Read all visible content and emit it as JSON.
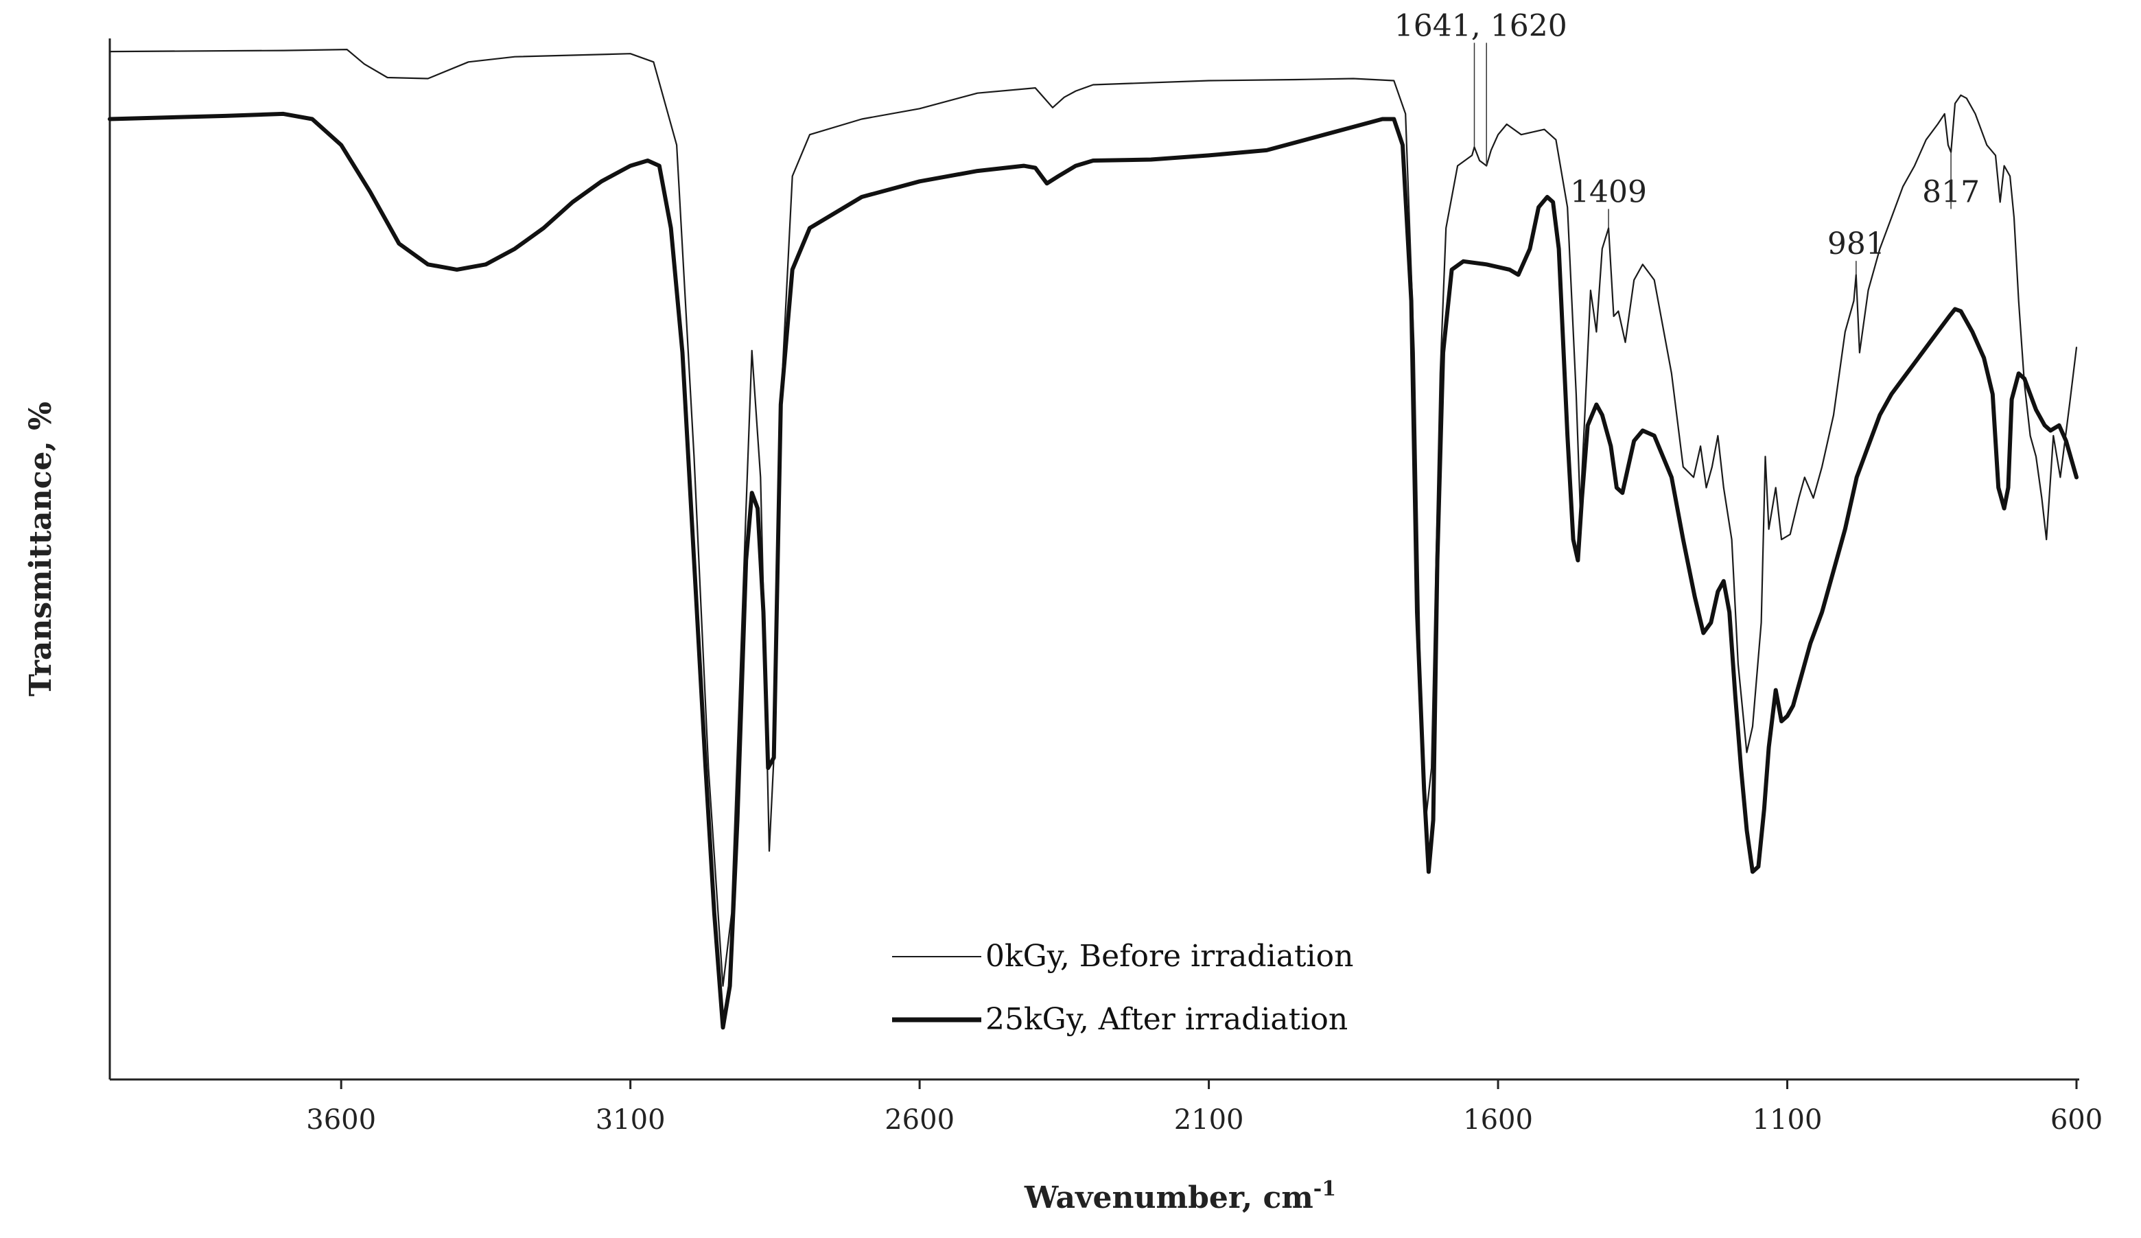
{
  "chart_data": {
    "type": "line",
    "title": "",
    "xlabel": "Wavenumber,  cm",
    "xlabel_superscript": "-1",
    "ylabel": "Transmittance,  %",
    "xlim": [
      4000,
      600
    ],
    "x_reversed": true,
    "ylim": [
      0,
      100
    ],
    "x_ticks": [
      3600,
      3100,
      2600,
      2100,
      1600,
      1100,
      600
    ],
    "y_ticks_shown": false,
    "grid": false,
    "legend_position": "bottom-center",
    "series": [
      {
        "name": "0kGy, Before irradiation",
        "style": "thin",
        "color": "#1a1a1a",
        "points": [
          [
            4000,
            99.0
          ],
          [
            3700,
            99.1
          ],
          [
            3590,
            99.2
          ],
          [
            3560,
            97.8
          ],
          [
            3520,
            96.5
          ],
          [
            3450,
            96.4
          ],
          [
            3380,
            98.0
          ],
          [
            3300,
            98.5
          ],
          [
            3100,
            98.8
          ],
          [
            3060,
            98.0
          ],
          [
            3020,
            90.0
          ],
          [
            2990,
            60.0
          ],
          [
            2965,
            30.0
          ],
          [
            2940,
            9.0
          ],
          [
            2925,
            16.0
          ],
          [
            2900,
            55.0
          ],
          [
            2890,
            70.2
          ],
          [
            2875,
            58.0
          ],
          [
            2868,
            42.0
          ],
          [
            2860,
            22.0
          ],
          [
            2852,
            31.0
          ],
          [
            2840,
            65.0
          ],
          [
            2820,
            87.0
          ],
          [
            2790,
            91.0
          ],
          [
            2700,
            92.5
          ],
          [
            2600,
            93.5
          ],
          [
            2500,
            95.0
          ],
          [
            2400,
            95.5
          ],
          [
            2370,
            93.6
          ],
          [
            2350,
            94.6
          ],
          [
            2330,
            95.2
          ],
          [
            2300,
            95.8
          ],
          [
            2100,
            96.2
          ],
          [
            1950,
            96.3
          ],
          [
            1850,
            96.4
          ],
          [
            1780,
            96.2
          ],
          [
            1760,
            93.0
          ],
          [
            1745,
            70.0
          ],
          [
            1735,
            40.0
          ],
          [
            1725,
            25.0
          ],
          [
            1715,
            30.0
          ],
          [
            1700,
            68.0
          ],
          [
            1690,
            82.0
          ],
          [
            1670,
            88.0
          ],
          [
            1645,
            89.0
          ],
          [
            1641,
            89.8
          ],
          [
            1632,
            88.5
          ],
          [
            1620,
            88.0
          ],
          [
            1612,
            89.5
          ],
          [
            1600,
            91.0
          ],
          [
            1585,
            92.0
          ],
          [
            1560,
            91.0
          ],
          [
            1520,
            91.5
          ],
          [
            1500,
            90.5
          ],
          [
            1480,
            84.0
          ],
          [
            1465,
            66.0
          ],
          [
            1458,
            55.0
          ],
          [
            1450,
            64.0
          ],
          [
            1440,
            76.0
          ],
          [
            1430,
            72.0
          ],
          [
            1420,
            80.0
          ],
          [
            1409,
            82.0
          ],
          [
            1400,
            73.5
          ],
          [
            1392,
            74.0
          ],
          [
            1380,
            71.0
          ],
          [
            1365,
            77.0
          ],
          [
            1350,
            78.5
          ],
          [
            1330,
            77.0
          ],
          [
            1300,
            68.0
          ],
          [
            1280,
            59.0
          ],
          [
            1262,
            58.0
          ],
          [
            1250,
            61.0
          ],
          [
            1240,
            57.0
          ],
          [
            1230,
            59.0
          ],
          [
            1220,
            62.0
          ],
          [
            1210,
            57.0
          ],
          [
            1196,
            52.0
          ],
          [
            1185,
            40.0
          ],
          [
            1170,
            31.5
          ],
          [
            1160,
            34.0
          ],
          [
            1145,
            44.0
          ],
          [
            1138,
            60.0
          ],
          [
            1132,
            53.0
          ],
          [
            1120,
            57.0
          ],
          [
            1110,
            52.0
          ],
          [
            1095,
            52.5
          ],
          [
            1080,
            56.0
          ],
          [
            1070,
            58.0
          ],
          [
            1055,
            56.0
          ],
          [
            1040,
            59.0
          ],
          [
            1020,
            64.0
          ],
          [
            1000,
            72.0
          ],
          [
            985,
            75.0
          ],
          [
            981,
            77.5
          ],
          [
            975,
            70.0
          ],
          [
            960,
            76.0
          ],
          [
            940,
            80.0
          ],
          [
            920,
            83.0
          ],
          [
            900,
            86.0
          ],
          [
            880,
            88.0
          ],
          [
            860,
            90.5
          ],
          [
            840,
            92.0
          ],
          [
            828,
            93.0
          ],
          [
            822,
            90.0
          ],
          [
            817,
            89.3
          ],
          [
            810,
            94.0
          ],
          [
            800,
            94.8
          ],
          [
            790,
            94.5
          ],
          [
            775,
            93.0
          ],
          [
            755,
            90.0
          ],
          [
            740,
            89.0
          ],
          [
            732,
            84.5
          ],
          [
            725,
            88.0
          ],
          [
            715,
            87.0
          ],
          [
            708,
            83.0
          ],
          [
            700,
            75.0
          ],
          [
            690,
            67.0
          ],
          [
            680,
            62.0
          ],
          [
            670,
            60.0
          ],
          [
            660,
            56.0
          ],
          [
            652,
            52.0
          ],
          [
            640,
            62.0
          ],
          [
            628,
            58.0
          ],
          [
            612,
            65.0
          ],
          [
            600,
            70.5
          ]
        ]
      },
      {
        "name": "25kGy, After irradiation",
        "style": "thick",
        "color": "#111111",
        "points": [
          [
            4000,
            92.5
          ],
          [
            3800,
            92.8
          ],
          [
            3700,
            93.0
          ],
          [
            3650,
            92.5
          ],
          [
            3600,
            90.0
          ],
          [
            3550,
            85.5
          ],
          [
            3500,
            80.5
          ],
          [
            3450,
            78.5
          ],
          [
            3400,
            78.0
          ],
          [
            3350,
            78.5
          ],
          [
            3300,
            80.0
          ],
          [
            3250,
            82.0
          ],
          [
            3200,
            84.5
          ],
          [
            3150,
            86.5
          ],
          [
            3100,
            88.0
          ],
          [
            3070,
            88.5
          ],
          [
            3050,
            88.0
          ],
          [
            3030,
            82.0
          ],
          [
            3010,
            70.0
          ],
          [
            2990,
            50.0
          ],
          [
            2970,
            30.0
          ],
          [
            2955,
            16.0
          ],
          [
            2940,
            5.0
          ],
          [
            2928,
            9.0
          ],
          [
            2915,
            25.0
          ],
          [
            2900,
            50.0
          ],
          [
            2890,
            56.5
          ],
          [
            2880,
            55.0
          ],
          [
            2870,
            45.0
          ],
          [
            2862,
            30.0
          ],
          [
            2852,
            31.0
          ],
          [
            2840,
            65.0
          ],
          [
            2820,
            78.0
          ],
          [
            2790,
            82.0
          ],
          [
            2700,
            85.0
          ],
          [
            2600,
            86.5
          ],
          [
            2500,
            87.5
          ],
          [
            2420,
            88.0
          ],
          [
            2400,
            87.8
          ],
          [
            2380,
            86.3
          ],
          [
            2360,
            87.0
          ],
          [
            2330,
            88.0
          ],
          [
            2300,
            88.5
          ],
          [
            2200,
            88.6
          ],
          [
            2100,
            89.0
          ],
          [
            2000,
            89.5
          ],
          [
            1900,
            91.0
          ],
          [
            1800,
            92.5
          ],
          [
            1780,
            92.5
          ],
          [
            1765,
            90.0
          ],
          [
            1750,
            75.0
          ],
          [
            1740,
            45.0
          ],
          [
            1728,
            28.0
          ],
          [
            1720,
            20.0
          ],
          [
            1712,
            25.0
          ],
          [
            1705,
            50.0
          ],
          [
            1695,
            70.0
          ],
          [
            1680,
            78.0
          ],
          [
            1660,
            78.8
          ],
          [
            1620,
            78.5
          ],
          [
            1580,
            78.0
          ],
          [
            1565,
            77.5
          ],
          [
            1545,
            80.0
          ],
          [
            1530,
            84.0
          ],
          [
            1515,
            85.0
          ],
          [
            1505,
            84.5
          ],
          [
            1495,
            80.0
          ],
          [
            1480,
            62.0
          ],
          [
            1470,
            52.0
          ],
          [
            1462,
            50.0
          ],
          [
            1455,
            56.0
          ],
          [
            1445,
            63.0
          ],
          [
            1430,
            65.0
          ],
          [
            1420,
            64.0
          ],
          [
            1405,
            61.0
          ],
          [
            1395,
            57.0
          ],
          [
            1385,
            56.5
          ],
          [
            1375,
            59.0
          ],
          [
            1365,
            61.5
          ],
          [
            1350,
            62.5
          ],
          [
            1330,
            62.0
          ],
          [
            1300,
            58.0
          ],
          [
            1280,
            52.0
          ],
          [
            1260,
            46.5
          ],
          [
            1245,
            43.0
          ],
          [
            1232,
            44.0
          ],
          [
            1220,
            47.0
          ],
          [
            1210,
            48.0
          ],
          [
            1200,
            45.0
          ],
          [
            1190,
            37.0
          ],
          [
            1180,
            30.0
          ],
          [
            1170,
            24.0
          ],
          [
            1160,
            20.0
          ],
          [
            1150,
            20.5
          ],
          [
            1140,
            26.0
          ],
          [
            1132,
            32.0
          ],
          [
            1120,
            37.5
          ],
          [
            1110,
            34.5
          ],
          [
            1100,
            35.0
          ],
          [
            1090,
            36.0
          ],
          [
            1080,
            38.0
          ],
          [
            1060,
            42.0
          ],
          [
            1040,
            45.0
          ],
          [
            1020,
            49.0
          ],
          [
            1000,
            53.0
          ],
          [
            980,
            58.0
          ],
          [
            960,
            61.0
          ],
          [
            940,
            64.0
          ],
          [
            920,
            66.0
          ],
          [
            900,
            67.5
          ],
          [
            880,
            69.0
          ],
          [
            860,
            70.5
          ],
          [
            840,
            72.0
          ],
          [
            820,
            73.5
          ],
          [
            810,
            74.2
          ],
          [
            800,
            74.0
          ],
          [
            780,
            72.0
          ],
          [
            760,
            69.5
          ],
          [
            745,
            66.0
          ],
          [
            735,
            57.0
          ],
          [
            725,
            55.0
          ],
          [
            718,
            57.0
          ],
          [
            712,
            65.5
          ],
          [
            700,
            68.0
          ],
          [
            690,
            67.5
          ],
          [
            670,
            64.5
          ],
          [
            655,
            63.0
          ],
          [
            645,
            62.5
          ],
          [
            630,
            63.0
          ],
          [
            618,
            61.5
          ],
          [
            600,
            58.0
          ]
        ]
      }
    ],
    "annotations": [
      {
        "text": "1641, 1620",
        "x": 1630,
        "y": 100.5,
        "leaders": [
          [
            1641,
            89.8
          ],
          [
            1620,
            88.0
          ]
        ]
      },
      {
        "text": "1409",
        "x": 1409,
        "y": 84.5,
        "leaders": [
          [
            1409,
            82.0
          ]
        ]
      },
      {
        "text": "981",
        "x": 981,
        "y": 79.5,
        "leaders": [
          [
            981,
            77.5
          ]
        ]
      },
      {
        "text": "817",
        "x": 817,
        "y": 84.5,
        "leaders": [
          [
            817,
            89.3
          ]
        ]
      }
    ]
  }
}
